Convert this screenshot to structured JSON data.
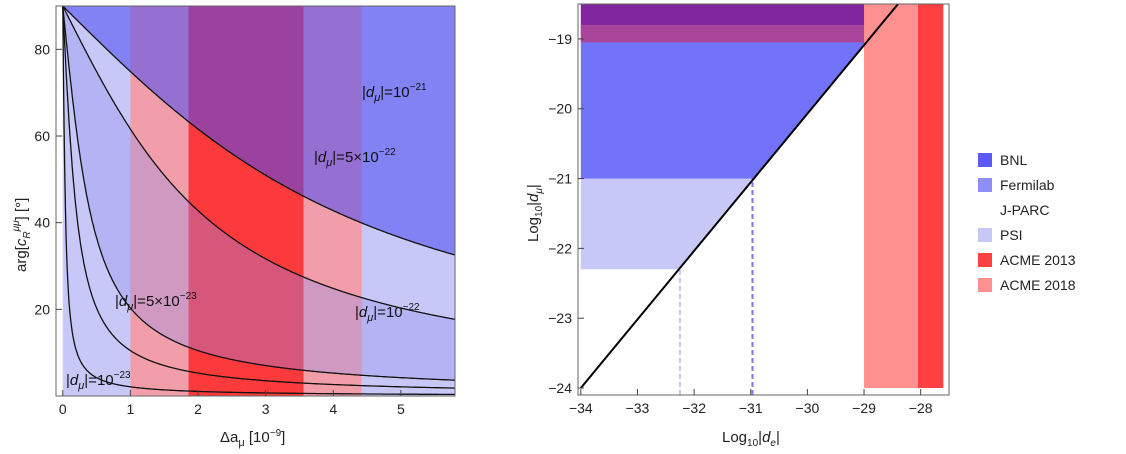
{
  "chart_data": [
    {
      "type": "area",
      "xlabel": "Δa_μ [10^-9]",
      "ylabel": "arg[c_R^μμ] [°]",
      "xlim": [
        -0.1,
        5.8
      ],
      "ylim": [
        0,
        90
      ],
      "xticks": [
        0,
        1,
        2,
        3,
        4,
        5
      ],
      "yticks": [
        20,
        40,
        60,
        80
      ],
      "bands": [
        {
          "name": "BNL",
          "color": "#5a5af8",
          "xmin": 1.86,
          "xmax": 3.56,
          "ymin": 0,
          "ymax": 90
        },
        {
          "name": "J-PARC",
          "color": "#ff7070",
          "xmin": 1.0,
          "xmax": 4.42,
          "ymin": 0,
          "ymax": 90
        },
        {
          "name": "PSI",
          "color": "#c8c8f8",
          "xmin": 0.0,
          "xmax": 5.8,
          "ymin": 0,
          "ymax": 90
        }
      ],
      "curves": [
        {
          "label": "|d_μ|=10^-21",
          "k": 3.7
        },
        {
          "label": "|d_μ|=5×10^-22",
          "k": 1.85
        },
        {
          "label": "|d_μ|=10^-22",
          "k": 0.37
        },
        {
          "label": "|d_μ|=5×10^-23",
          "k": 0.185
        },
        {
          "label": "|d_μ|=10^-23",
          "k": 0.037
        }
      ]
    },
    {
      "type": "area",
      "xlabel": "Log10|d_e|",
      "ylabel": "Log10|d_μ|",
      "xlim": [
        -34.05,
        -27.5
      ],
      "ylim": [
        -24.1,
        -18.5
      ],
      "xticks": [
        -34,
        -33,
        -32,
        -31,
        -30,
        -29,
        -28
      ],
      "yticks": [
        -24,
        -23,
        -22,
        -21,
        -20,
        -19
      ],
      "boundary": {
        "x": [
          -34,
          -28.4
        ],
        "y": [
          -24,
          -18.5
        ]
      },
      "regions": [
        {
          "name": "PSI",
          "ymin": -22.3,
          "ymax": -21.0
        },
        {
          "name": "Fermilab",
          "ymin": -21.0,
          "ymax": -19.05
        },
        {
          "name": "BNL",
          "ymin": -19.05,
          "ymax": -18.5
        },
        {
          "name": "ACME 2013",
          "xmin": -28.05,
          "xmax": -27.6
        },
        {
          "name": "ACME 2018",
          "xmin": -29.0,
          "xmax": -28.05
        }
      ],
      "dashed": [
        {
          "x": -32.25,
          "ylow": -24.1,
          "yhigh": -22.3,
          "color": "#c8c8f8"
        },
        {
          "x": -30.97,
          "ylow": -24.1,
          "yhigh": -21.0,
          "color": "#7a7af0"
        }
      ],
      "legend": {
        "placement": "right",
        "entries": [
          {
            "name": "BNL",
            "color": "#5a5af8"
          },
          {
            "name": "Fermilab",
            "color": "#8d8df5"
          },
          {
            "name": "J-PARC",
            "color": ""
          },
          {
            "name": "PSI",
            "color": "#c8c8f8"
          },
          {
            "name": "ACME 2013",
            "color": "#ff4040"
          },
          {
            "name": "ACME 2018",
            "color": "#ff9090"
          }
        ]
      }
    }
  ]
}
